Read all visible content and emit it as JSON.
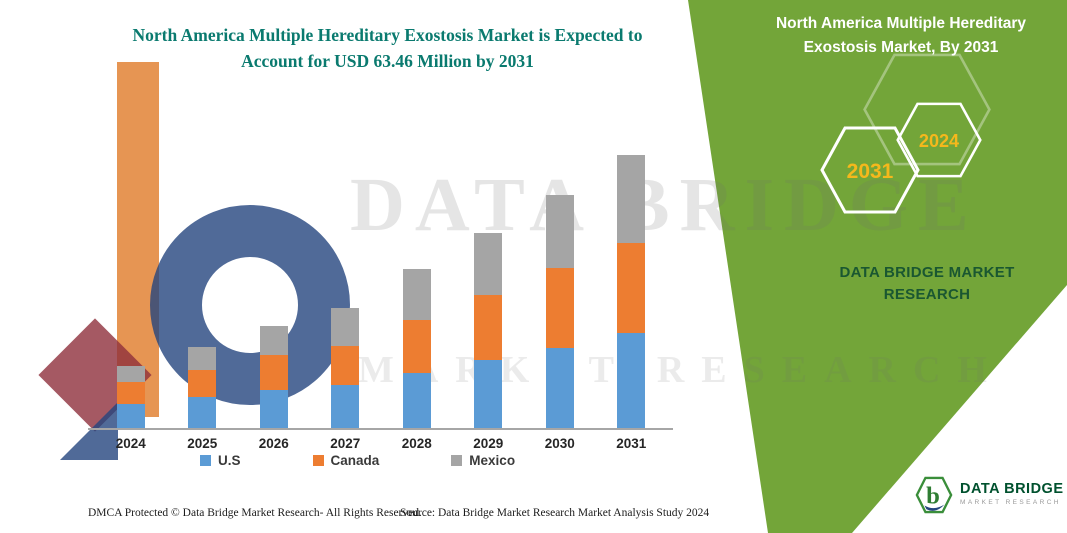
{
  "header": {
    "title": "North America Multiple Hereditary Exostosis Market is Expected to Account for USD 63.46 Million by 2031"
  },
  "panel": {
    "title": "North America Multiple Hereditary Exostosis Market, By 2031",
    "badges": {
      "front": "2031",
      "back": "2024"
    },
    "brand": "DATA BRIDGE MARKET RESEARCH",
    "colors": {
      "panel_green": "#73A539",
      "badge_year_text": "#F5B81C"
    }
  },
  "watermark": {
    "line1": "DATA BRIDGE",
    "line2": "MARKET RESEARCH"
  },
  "chart_data": {
    "type": "bar",
    "stacked": true,
    "title": "North America Multiple Hereditary Exostosis Market is Expected to Account for USD 63.46 Million by 2031",
    "unit": "USD Million",
    "categories": [
      "2024",
      "2025",
      "2026",
      "2027",
      "2028",
      "2029",
      "2030",
      "2031"
    ],
    "series": [
      {
        "name": "U.S",
        "color": "#5B9BD5",
        "values": [
          5.6,
          7.2,
          8.8,
          10.0,
          12.8,
          15.8,
          18.6,
          22.1
        ]
      },
      {
        "name": "Canada",
        "color": "#ED7D31",
        "values": [
          5.1,
          6.3,
          8.1,
          9.0,
          12.3,
          15.1,
          18.6,
          20.9
        ]
      },
      {
        "name": "Mexico",
        "color": "#A5A5A5",
        "values": [
          3.7,
          5.3,
          6.7,
          8.9,
          11.9,
          14.4,
          17.0,
          20.46
        ]
      }
    ],
    "xlabel": "",
    "ylabel": "",
    "ylim": [
      0,
      65
    ],
    "grid": false,
    "legend_position": "bottom",
    "total_2031": 63.46
  },
  "footer": {
    "dmca": "DMCA Protected © Data Bridge Market Research-  All Rights Reserved.",
    "source": "Source: Data Bridge Market Research  Market Analysis Study 2024"
  },
  "logo": {
    "name": "DATA BRIDGE",
    "tagline": "MARKET RESEARCH"
  }
}
